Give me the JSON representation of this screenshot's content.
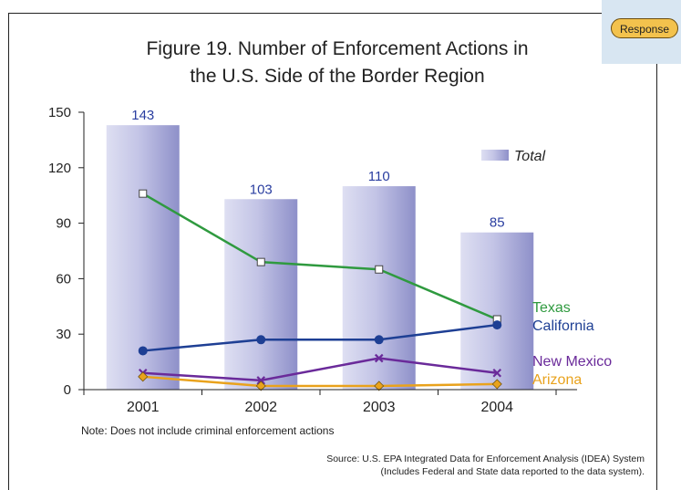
{
  "badge": {
    "label": "Response"
  },
  "chart_data": {
    "type": "bar",
    "title": [
      "Figure 19.  Number of Enforcement Actions in",
      "the U.S. Side of the Border Region"
    ],
    "categories": [
      "2001",
      "2002",
      "2003",
      "2004"
    ],
    "ylim": [
      0,
      150
    ],
    "yticks": [
      0,
      30,
      60,
      90,
      120,
      150
    ],
    "bars": {
      "name": "Total",
      "values": [
        143,
        103,
        110,
        85
      ],
      "color": "#a7a8d6"
    },
    "series": [
      {
        "name": "Texas",
        "values": [
          106,
          69,
          65,
          38
        ],
        "color": "#2f9a3f",
        "marker": "square"
      },
      {
        "name": "California",
        "values": [
          21,
          27,
          27,
          35
        ],
        "color": "#1e3f94",
        "marker": "circle"
      },
      {
        "name": "New Mexico",
        "values": [
          9,
          5,
          17,
          9
        ],
        "color": "#6a2a9a",
        "marker": "x"
      },
      {
        "name": "Arizona",
        "values": [
          7,
          2,
          2,
          3
        ],
        "color": "#e9a21c",
        "marker": "diamond"
      }
    ],
    "legend": "inside-right",
    "note": "Note: Does not include criminal enforcement actions",
    "source": [
      "Source:  U.S. EPA Integrated Data for Enforcement Analysis (IDEA) System",
      "(Includes Federal and State data reported to the data system)."
    ]
  }
}
